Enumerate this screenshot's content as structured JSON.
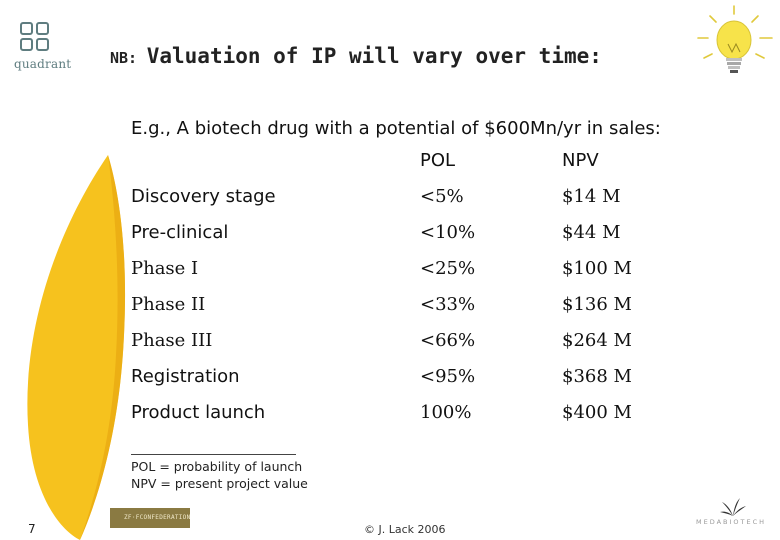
{
  "logo": {
    "wordmark": "quadrant",
    "color": "#5f7d80"
  },
  "title": {
    "prefix": "NB:",
    "text": "Valuation of IP will vary over time:"
  },
  "subtitle": "E.g., A biotech drug with a potential of $600Mn/yr in sales:",
  "table": {
    "headers": [
      "POL",
      "NPV"
    ],
    "rows": [
      {
        "stage": "Discovery stage",
        "pol": "<5%",
        "npv": "$14 M"
      },
      {
        "stage": "Pre-clinical",
        "pol": "<10%",
        "npv": "$44 M"
      },
      {
        "stage": "Phase I",
        "pol": "<25%",
        "npv": "$100 M"
      },
      {
        "stage": "Phase II",
        "pol": "<33%",
        "npv": "$136 M"
      },
      {
        "stage": "Phase III",
        "pol": "<66%",
        "npv": "$264 M"
      },
      {
        "stage": "Registration",
        "pol": "<95%",
        "npv": "$368 M"
      },
      {
        "stage": "Product launch",
        "pol": "100%",
        "npv": "$400 M"
      }
    ]
  },
  "footnotes": [
    "POL = probability of launch",
    "NPV = present project value"
  ],
  "footer": {
    "page_number": "7",
    "copyright": "© J. Lack 2006",
    "medabiotech": "MEDABIOTECH",
    "badge_text": "ZF·FCONFEDERATION"
  },
  "colors": {
    "leaf": "#f6c21e",
    "leaf_dark": "#e8a70f",
    "bulb": "#f7e34a"
  }
}
